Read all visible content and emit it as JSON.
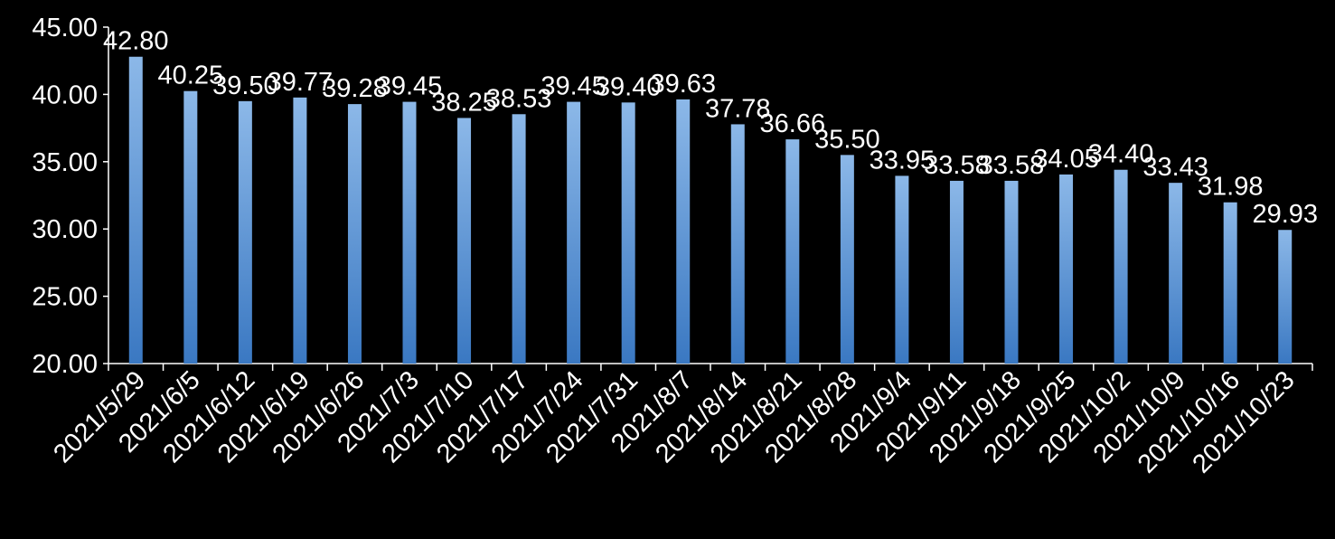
{
  "chart_data": {
    "type": "bar",
    "title": "",
    "xlabel": "",
    "ylabel": "",
    "ylim": [
      20,
      45
    ],
    "yticks": [
      "20.00",
      "25.00",
      "30.00",
      "35.00",
      "40.00",
      "45.00"
    ],
    "grid": false,
    "legend": "none",
    "categories": [
      "2021/5/29",
      "2021/6/5",
      "2021/6/12",
      "2021/6/19",
      "2021/6/26",
      "2021/7/3",
      "2021/7/10",
      "2021/7/17",
      "2021/7/24",
      "2021/7/31",
      "2021/8/7",
      "2021/8/14",
      "2021/8/21",
      "2021/8/28",
      "2021/9/4",
      "2021/9/11",
      "2021/9/18",
      "2021/9/25",
      "2021/10/2",
      "2021/10/9",
      "2021/10/16",
      "2021/10/23"
    ],
    "series": [
      {
        "values": [
          42.8,
          40.25,
          39.5,
          39.77,
          39.28,
          39.45,
          38.25,
          38.53,
          39.45,
          39.4,
          39.63,
          37.78,
          36.66,
          35.5,
          33.95,
          33.58,
          33.58,
          34.05,
          34.4,
          33.43,
          31.98,
          29.93
        ],
        "labels": [
          "42.80",
          "40.25",
          "39.50",
          "39.77",
          "39.28",
          "39.45",
          "38.25",
          "38.53",
          "39.45",
          "39.40",
          "39.63",
          "37.78",
          "36.66",
          "35.50",
          "33.95",
          "33.58",
          "33.58",
          "34.05",
          "34.40",
          "33.43",
          "31.98",
          "29.93"
        ]
      }
    ],
    "colors": {
      "background": "#000000",
      "bar_top": "#8cb8e8",
      "bar_bottom": "#3a78c2",
      "text": "#ffffff",
      "axis": "#ffffff"
    }
  }
}
